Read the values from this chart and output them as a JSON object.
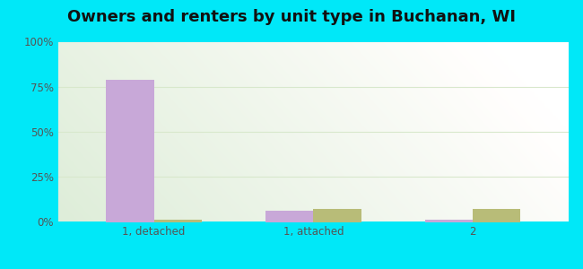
{
  "title": "Owners and renters by unit type in Buchanan, WI",
  "categories": [
    "1, detached",
    "1, attached",
    "2"
  ],
  "owner_values": [
    79,
    6,
    1
  ],
  "renter_values": [
    1,
    7,
    7
  ],
  "owner_color": "#c8a8d8",
  "renter_color": "#b8bc78",
  "ylim": [
    0,
    100
  ],
  "yticks": [
    0,
    25,
    50,
    75,
    100
  ],
  "ytick_labels": [
    "0%",
    "25%",
    "50%",
    "75%",
    "100%"
  ],
  "outer_color": "#00e8f8",
  "bar_width": 0.3,
  "title_fontsize": 13,
  "legend_fontsize": 9.5,
  "tick_fontsize": 8.5,
  "grid_color": "#e0ead8",
  "bg_color_topleft": "#e0f0d8",
  "bg_color_topright": "#f5fef5",
  "bg_color_bottomleft": "#d0e8c0",
  "bg_color_bottomright": "#e8f8e0"
}
